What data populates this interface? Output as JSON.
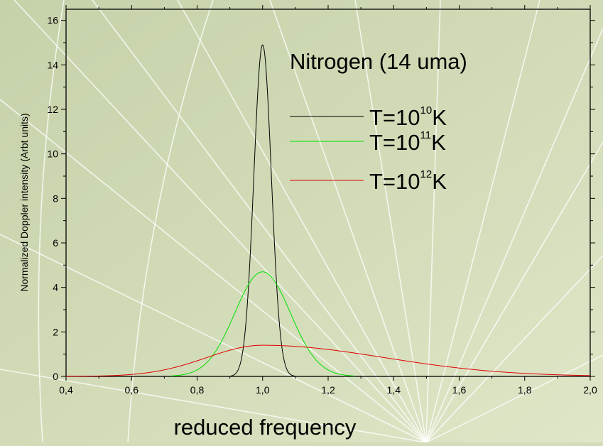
{
  "chart_data": {
    "type": "line",
    "title": "",
    "xlabel": "reduced frequency",
    "ylabel": "Normalized Doppler intensity (Arbt units)",
    "xlim": [
      0.4,
      2.0
    ],
    "ylim": [
      0,
      16.5
    ],
    "x_ticks": [
      "0,4",
      "0,6",
      "0,8",
      "1,0",
      "1,2",
      "1,4",
      "1,6",
      "1,8",
      "2,0"
    ],
    "y_ticks": [
      "0",
      "2",
      "4",
      "6",
      "8",
      "10",
      "12",
      "14",
      "16"
    ],
    "grid": false,
    "legend": {
      "position": "top-right",
      "title": "Nitrogen (14 uma)",
      "entries": [
        {
          "prefix": "T=10",
          "exponent": "10",
          "suffix": "K"
        },
        {
          "prefix": "T=10",
          "exponent": "11",
          "suffix": "K"
        },
        {
          "prefix": "T=10",
          "exponent": "12",
          "suffix": "K"
        }
      ]
    },
    "series": [
      {
        "name": "T=10^10K",
        "color": "#000000",
        "peak_x": 1.0,
        "peak_y": 14.9,
        "sigma": 0.0267
      },
      {
        "name": "T=10^11K",
        "color": "#00e000",
        "peak_x": 1.0,
        "peak_y": 4.7,
        "sigma": 0.0848
      },
      {
        "name": "T=10^12K",
        "color": "#e00000",
        "peak_x": 1.0,
        "peak_y": 1.4,
        "sigma_left": 0.17,
        "sigma_right": 0.37
      }
    ]
  }
}
